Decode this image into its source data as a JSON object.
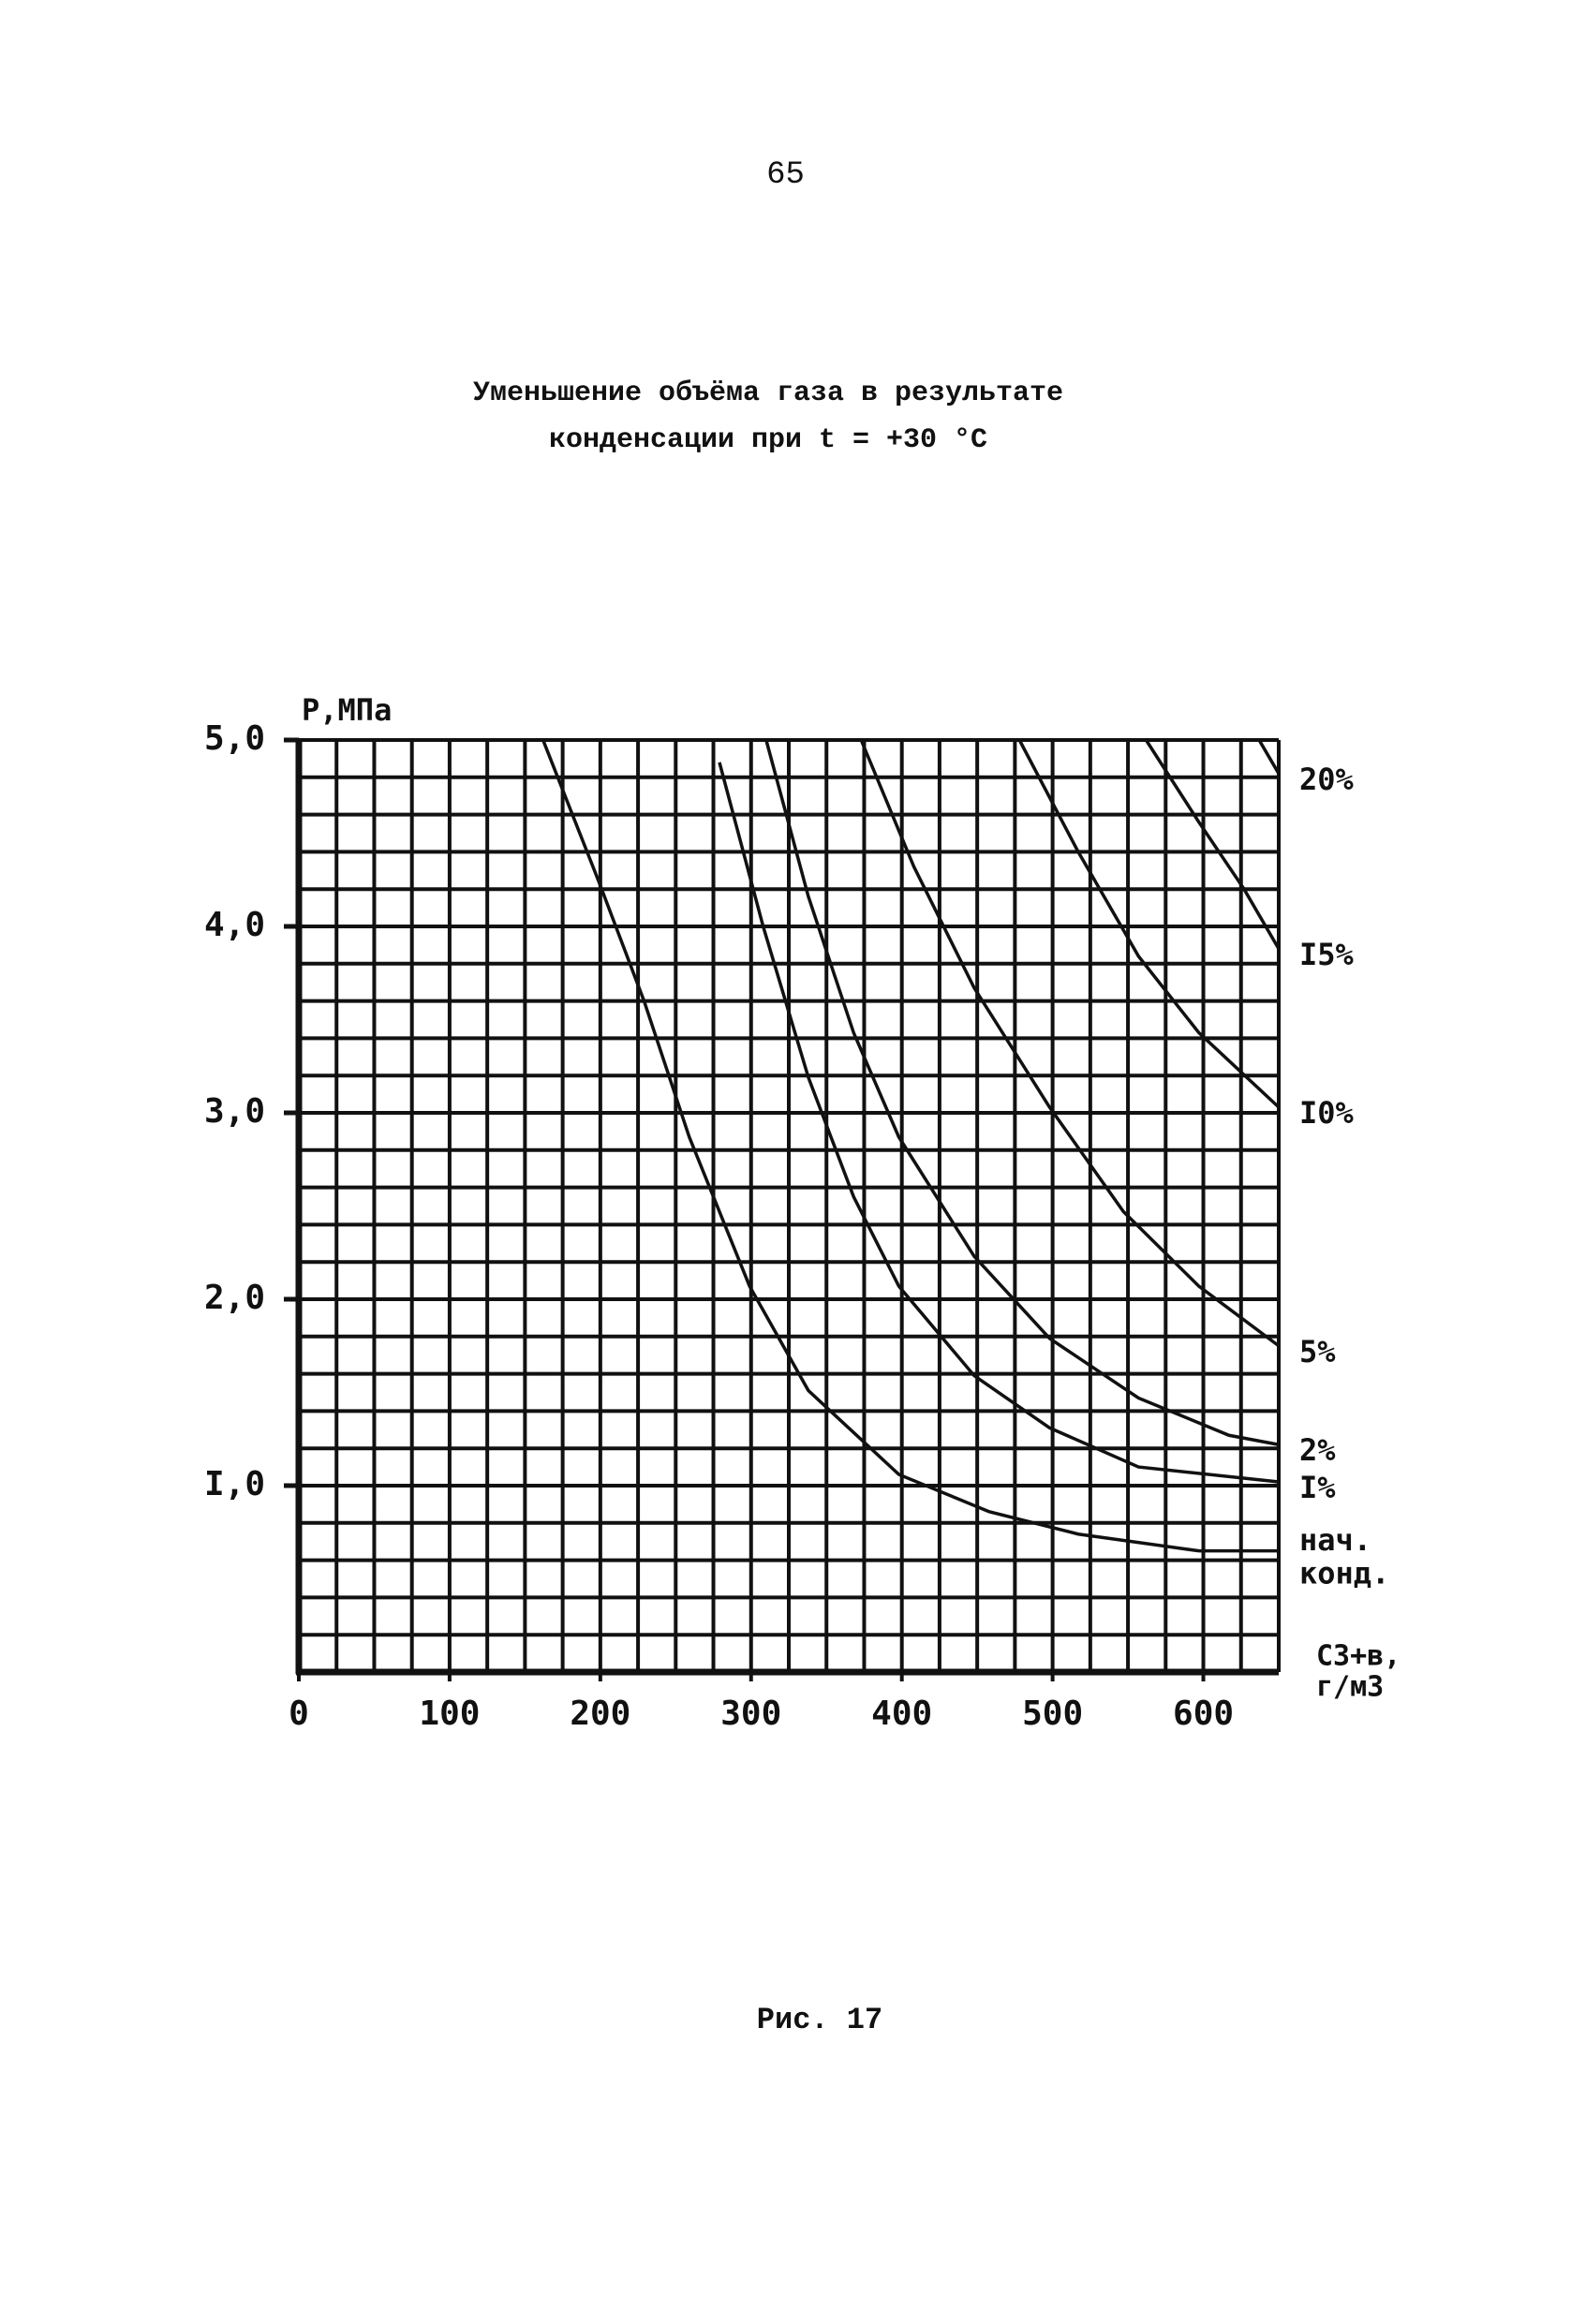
{
  "page_number": "65",
  "caption": "Рис. 17",
  "chart_data": {
    "type": "line",
    "title": "Уменьшение объёма газа в результате конденсации при t = +30 °С",
    "y_label": "P,МПа",
    "x_label": "С3+в, г/м3",
    "xlim": [
      0,
      650
    ],
    "ylim": [
      0,
      5
    ],
    "xticks": [
      0,
      100,
      200,
      300,
      400,
      500,
      600
    ],
    "yticks": [
      {
        "value": 1,
        "label": "I,0"
      },
      {
        "value": 2,
        "label": "2,0"
      },
      {
        "value": 3,
        "label": "3,0"
      },
      {
        "value": 4,
        "label": "4,0"
      },
      {
        "value": 5,
        "label": "5,0"
      }
    ],
    "xgrid": [
      0,
      25,
      50,
      75,
      100,
      125,
      150,
      175,
      200,
      225,
      250,
      275,
      300,
      325,
      350,
      375,
      400,
      425,
      450,
      475,
      500,
      525,
      550,
      575,
      600,
      625,
      650
    ],
    "ygrid": [
      0,
      0.2,
      0.4,
      0.6,
      0.8,
      1.0,
      1.2,
      1.4,
      1.6,
      1.8,
      2.0,
      2.2,
      2.4,
      2.6,
      2.8,
      3.0,
      3.2,
      3.4,
      3.6,
      3.8,
      4.0,
      4.2,
      4.4,
      4.6,
      4.8,
      5.0
    ],
    "grid": true,
    "color": "#111111",
    "series": [
      {
        "name": "нач. конд.",
        "width": 6,
        "x": [
          162,
          199,
          229,
          259,
          299,
          338,
          398,
          458,
          517,
          597,
          650
        ],
        "values": [
          5.0,
          4.24,
          3.6,
          2.87,
          2.07,
          1.51,
          1.06,
          0.86,
          0.74,
          0.65,
          0.65
        ]
      },
      {
        "name": "I%",
        "width": 4,
        "x": [
          279,
          308,
          338,
          368,
          398,
          448,
          498,
          557,
          650
        ],
        "values": [
          4.88,
          4.0,
          3.19,
          2.55,
          2.07,
          1.59,
          1.31,
          1.1,
          1.02
        ]
      },
      {
        "name": "2%",
        "width": 4,
        "x": [
          310,
          338,
          368,
          398,
          448,
          498,
          557,
          617,
          650
        ],
        "values": [
          5.0,
          4.16,
          3.43,
          2.87,
          2.23,
          1.79,
          1.47,
          1.27,
          1.22
        ]
      },
      {
        "name": "5%",
        "width": 3,
        "x": [
          373,
          408,
          448,
          498,
          547,
          597,
          650
        ],
        "values": [
          5.0,
          4.32,
          3.67,
          3.03,
          2.47,
          2.07,
          1.75
        ]
      },
      {
        "name": "I0%",
        "width": 3,
        "x": [
          478,
          517,
          557,
          597,
          650
        ],
        "values": [
          5.0,
          4.4,
          3.84,
          3.43,
          3.03
        ]
      },
      {
        "name": "I5%",
        "width": 3,
        "x": [
          562,
          597,
          627,
          650
        ],
        "values": [
          5.0,
          4.56,
          4.2,
          3.88
        ]
      },
      {
        "name": "20%",
        "width": 3,
        "x": [
          637,
          650
        ],
        "values": [
          5.0,
          4.82
        ]
      }
    ]
  }
}
